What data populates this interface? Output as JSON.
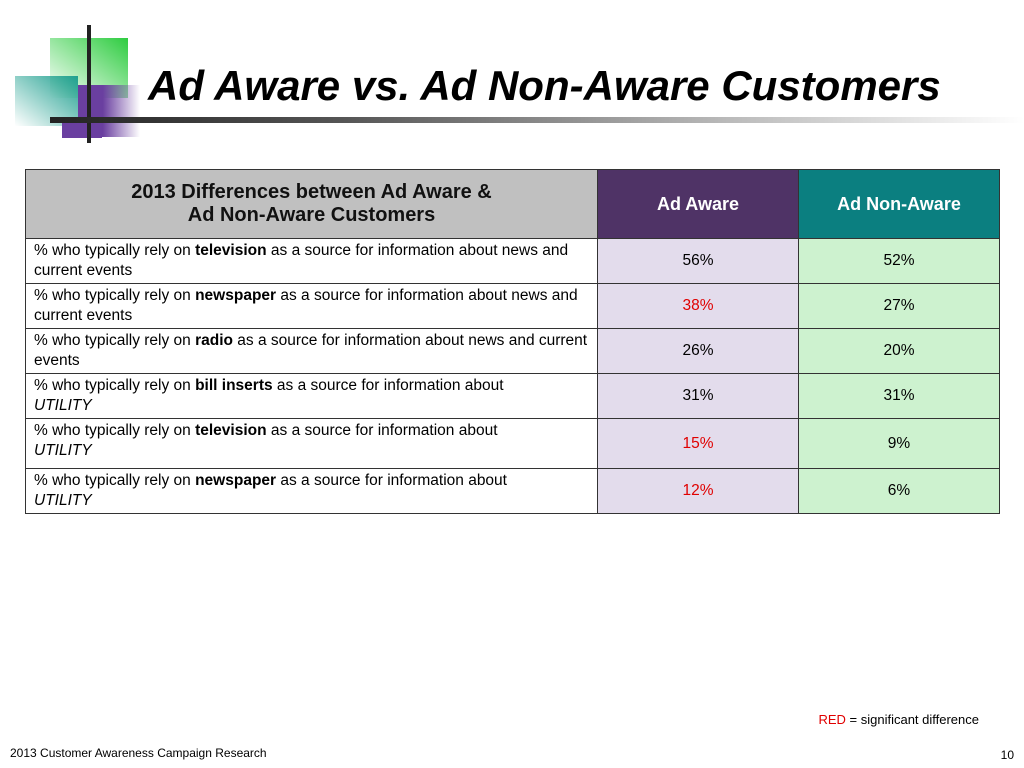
{
  "slide": {
    "title": "Ad Aware vs. Ad Non-Aware Customers",
    "footer": "2013 Customer Awareness Campaign Research",
    "page_number": "10"
  },
  "table": {
    "header": {
      "question_line1": "2013 Differences between Ad Aware &",
      "question_line2": "Ad Non-Aware Customers",
      "col_aware": "Ad Aware",
      "col_nonaware": "Ad Non-Aware"
    },
    "rows": [
      {
        "pre": "% who typically rely on ",
        "bold": "television",
        "post": " as a source for information about news and current events",
        "italic": "",
        "aware": "56%",
        "nonaware": "52%",
        "aware_significant": false
      },
      {
        "pre": "% who typically rely on ",
        "bold": "newspaper",
        "post": " as a source for information about news and current events",
        "italic": "",
        "aware": "38%",
        "nonaware": "27%",
        "aware_significant": true
      },
      {
        "pre": "% who typically rely on ",
        "bold": "radio",
        "post": " as a source for information about news and current events",
        "italic": "",
        "aware": "26%",
        "nonaware": "20%",
        "aware_significant": false
      },
      {
        "pre": "% who typically rely on ",
        "bold": "bill inserts",
        "post": " as a source for information about",
        "italic": "UTILITY",
        "aware": "31%",
        "nonaware": "31%",
        "aware_significant": false
      },
      {
        "pre": "% who typically rely on ",
        "bold": "television",
        "post": " as a source for information about",
        "italic": "UTILITY",
        "aware": "15%",
        "nonaware": "9%",
        "aware_significant": true
      },
      {
        "pre": "% who typically rely on ",
        "bold": "newspaper",
        "post": " as a source for information about",
        "italic": "UTILITY",
        "aware": "12%",
        "nonaware": "6%",
        "aware_significant": true
      }
    ]
  },
  "legend": {
    "red_word": "RED",
    "rest": " = significant difference"
  },
  "colors": {
    "aware_header": "#4f3366",
    "nonaware_header": "#0b7f80",
    "aware_cell": "#e3dcec",
    "nonaware_cell": "#cdf2cf",
    "significant": "#e00000"
  }
}
